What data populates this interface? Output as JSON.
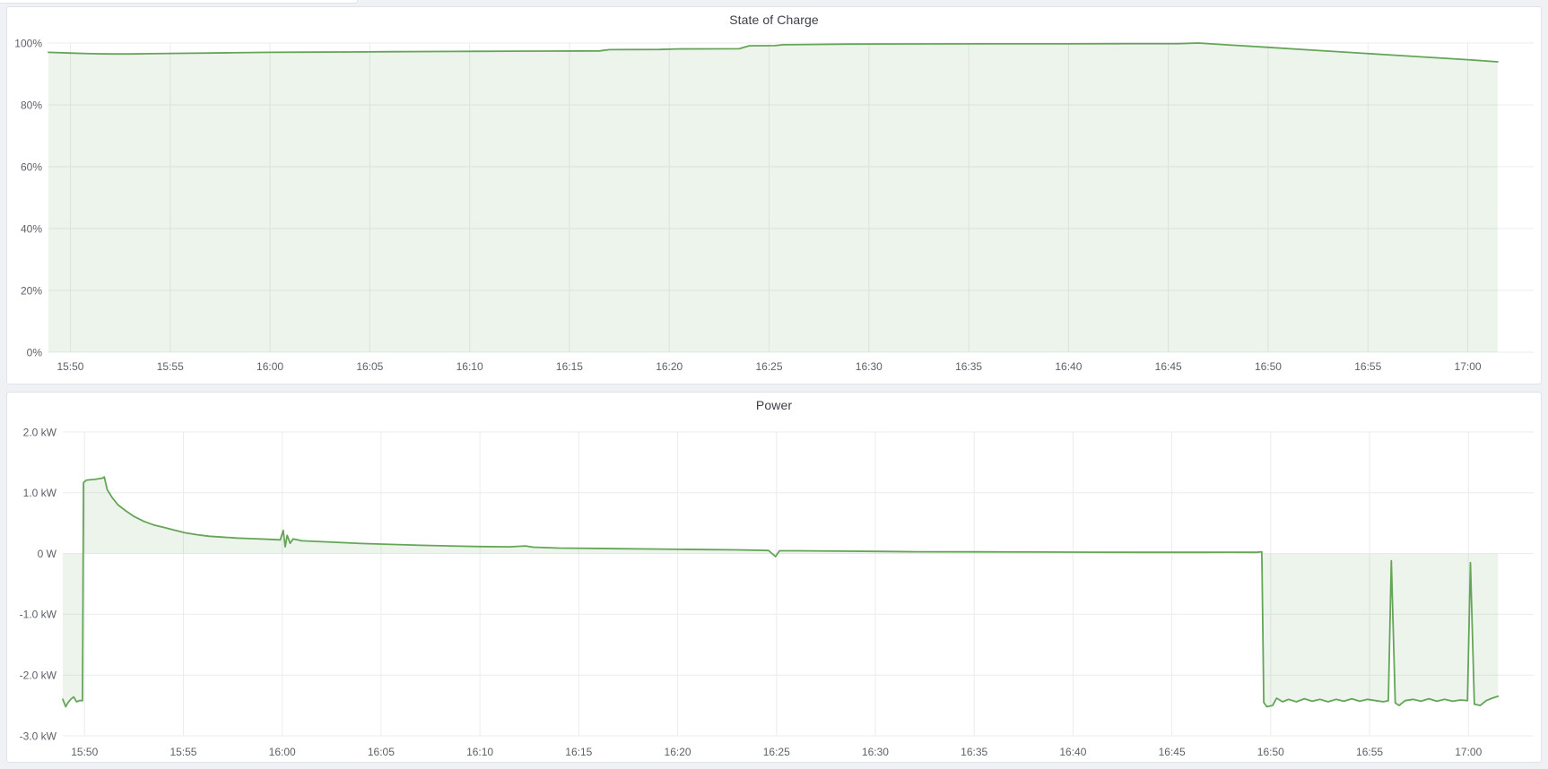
{
  "page": {
    "background": "#f0f1f4",
    "panel_background": "#ffffff",
    "panel_border": "#e0e3e9",
    "title_color": "#3c4048",
    "axis_label_color": "#5c6168",
    "grid_color": "#ebecee",
    "accent_green": "#65a558",
    "fill_opacity": 0.12
  },
  "chart_data": [
    {
      "type": "area",
      "title": "State of Charge",
      "unit": "percent",
      "legend": "hidden",
      "grid": true,
      "x_axis": {
        "start_minutes": 48.9,
        "end_minutes": 123.3,
        "tick_minutes": [
          50,
          55,
          60,
          65,
          70,
          75,
          80,
          85,
          90,
          95,
          100,
          105,
          110,
          115,
          120
        ],
        "tick_labels": [
          "15:50",
          "15:55",
          "16:00",
          "16:05",
          "16:10",
          "16:15",
          "16:20",
          "16:25",
          "16:30",
          "16:35",
          "16:40",
          "16:45",
          "16:50",
          "16:55",
          "17:00"
        ]
      },
      "y_axis": {
        "min": 0,
        "max": 100,
        "ticks": [
          {
            "value": 100,
            "label": "100%"
          },
          {
            "value": 80,
            "label": "80%"
          },
          {
            "value": 60,
            "label": "60%"
          },
          {
            "value": 40,
            "label": "40%"
          },
          {
            "value": 20,
            "label": "20%"
          }
        ],
        "bottom_tick": {
          "value": 0,
          "label": "0%"
        }
      },
      "fill_to_value": 0,
      "series": [
        {
          "name": "State of Charge",
          "points": [
            [
              48.9,
              97.0
            ],
            [
              50,
              96.75
            ],
            [
              51,
              96.55
            ],
            [
              52,
              96.45
            ],
            [
              53,
              96.45
            ],
            [
              54,
              96.55
            ],
            [
              56,
              96.7
            ],
            [
              58,
              96.85
            ],
            [
              60,
              97.0
            ],
            [
              62,
              97.05
            ],
            [
              64,
              97.1
            ],
            [
              66,
              97.2
            ],
            [
              68,
              97.25
            ],
            [
              70,
              97.3
            ],
            [
              72,
              97.35
            ],
            [
              74,
              97.4
            ],
            [
              76.5,
              97.45
            ],
            [
              77,
              97.85
            ],
            [
              79.5,
              97.9
            ],
            [
              80.4,
              98.1
            ],
            [
              83.5,
              98.15
            ],
            [
              84,
              99.1
            ],
            [
              85.3,
              99.15
            ],
            [
              85.7,
              99.45
            ],
            [
              87,
              99.55
            ],
            [
              89,
              99.65
            ],
            [
              92,
              99.7
            ],
            [
              96,
              99.75
            ],
            [
              100,
              99.75
            ],
            [
              103,
              99.8
            ],
            [
              105.5,
              99.8
            ],
            [
              106.5,
              100.0
            ],
            [
              108,
              99.4
            ],
            [
              110,
              98.6
            ],
            [
              112,
              97.8
            ],
            [
              114,
              97.0
            ],
            [
              116,
              96.2
            ],
            [
              118,
              95.4
            ],
            [
              120,
              94.6
            ],
            [
              121.5,
              93.9
            ]
          ]
        }
      ]
    },
    {
      "type": "area",
      "title": "Power",
      "unit": "watt",
      "legend": "hidden",
      "grid": true,
      "x_axis": {
        "start_minutes": 48.9,
        "end_minutes": 123.3,
        "tick_minutes": [
          50,
          55,
          60,
          65,
          70,
          75,
          80,
          85,
          90,
          95,
          100,
          105,
          110,
          115,
          120
        ],
        "tick_labels": [
          "15:50",
          "15:55",
          "16:00",
          "16:05",
          "16:10",
          "16:15",
          "16:20",
          "16:25",
          "16:30",
          "16:35",
          "16:40",
          "16:45",
          "16:50",
          "16:55",
          "17:00"
        ]
      },
      "y_axis": {
        "min": -3,
        "max": 2,
        "ticks": [
          {
            "value": 2,
            "label": "2.0 kW"
          },
          {
            "value": 1,
            "label": "1.0 kW"
          },
          {
            "value": 0,
            "label": "0 W"
          },
          {
            "value": -1,
            "label": "-1.0 kW"
          },
          {
            "value": -2,
            "label": "-2.0 kW"
          }
        ],
        "bottom_tick": {
          "value": -3,
          "label": "-3.0 kW"
        }
      },
      "fill_to_value": 0,
      "series": [
        {
          "name": "Power",
          "points": [
            [
              48.9,
              -2.4
            ],
            [
              49.05,
              -2.52
            ],
            [
              49.15,
              -2.46
            ],
            [
              49.3,
              -2.4
            ],
            [
              49.45,
              -2.36
            ],
            [
              49.6,
              -2.44
            ],
            [
              49.75,
              -2.42
            ],
            [
              49.9,
              -2.42
            ],
            [
              49.95,
              1.17
            ],
            [
              50.1,
              1.21
            ],
            [
              50.5,
              1.22
            ],
            [
              50.9,
              1.24
            ],
            [
              51.0,
              1.26
            ],
            [
              51.15,
              1.05
            ],
            [
              51.4,
              0.92
            ],
            [
              51.7,
              0.8
            ],
            [
              52.1,
              0.7
            ],
            [
              52.5,
              0.61
            ],
            [
              53.0,
              0.53
            ],
            [
              53.5,
              0.47
            ],
            [
              54.0,
              0.43
            ],
            [
              54.6,
              0.38
            ],
            [
              55.1,
              0.34
            ],
            [
              55.7,
              0.31
            ],
            [
              56.3,
              0.285
            ],
            [
              57.0,
              0.27
            ],
            [
              57.7,
              0.255
            ],
            [
              58.5,
              0.245
            ],
            [
              59.3,
              0.235
            ],
            [
              59.9,
              0.225
            ],
            [
              60.05,
              0.38
            ],
            [
              60.15,
              0.11
            ],
            [
              60.25,
              0.3
            ],
            [
              60.4,
              0.17
            ],
            [
              60.55,
              0.24
            ],
            [
              61.0,
              0.21
            ],
            [
              62.0,
              0.195
            ],
            [
              63.0,
              0.18
            ],
            [
              64.0,
              0.165
            ],
            [
              65.5,
              0.15
            ],
            [
              67.0,
              0.135
            ],
            [
              68.5,
              0.125
            ],
            [
              70.0,
              0.115
            ],
            [
              71.5,
              0.11
            ],
            [
              72.3,
              0.125
            ],
            [
              72.7,
              0.105
            ],
            [
              74.0,
              0.09
            ],
            [
              75.5,
              0.085
            ],
            [
              77.0,
              0.08
            ],
            [
              78.5,
              0.075
            ],
            [
              80.0,
              0.07
            ],
            [
              81.5,
              0.065
            ],
            [
              83.0,
              0.06
            ],
            [
              84.6,
              0.05
            ],
            [
              84.95,
              -0.05
            ],
            [
              85.15,
              0.045
            ],
            [
              86.0,
              0.045
            ],
            [
              88.0,
              0.04
            ],
            [
              90.0,
              0.035
            ],
            [
              92.0,
              0.03
            ],
            [
              95.0,
              0.028
            ],
            [
              98.0,
              0.025
            ],
            [
              101.0,
              0.022
            ],
            [
              104.0,
              0.02
            ],
            [
              106.5,
              0.02
            ],
            [
              108.0,
              0.022
            ],
            [
              109.3,
              0.02
            ],
            [
              109.55,
              0.03
            ],
            [
              109.65,
              -2.45
            ],
            [
              109.8,
              -2.52
            ],
            [
              110.1,
              -2.5
            ],
            [
              110.3,
              -2.38
            ],
            [
              110.6,
              -2.44
            ],
            [
              110.9,
              -2.4
            ],
            [
              111.3,
              -2.44
            ],
            [
              111.7,
              -2.39
            ],
            [
              112.1,
              -2.43
            ],
            [
              112.5,
              -2.4
            ],
            [
              112.9,
              -2.44
            ],
            [
              113.3,
              -2.4
            ],
            [
              113.7,
              -2.43
            ],
            [
              114.1,
              -2.39
            ],
            [
              114.5,
              -2.43
            ],
            [
              114.9,
              -2.4
            ],
            [
              115.3,
              -2.42
            ],
            [
              115.7,
              -2.44
            ],
            [
              115.95,
              -2.42
            ],
            [
              116.1,
              -0.12
            ],
            [
              116.3,
              -2.46
            ],
            [
              116.5,
              -2.5
            ],
            [
              116.8,
              -2.42
            ],
            [
              117.2,
              -2.4
            ],
            [
              117.6,
              -2.43
            ],
            [
              118.0,
              -2.39
            ],
            [
              118.4,
              -2.43
            ],
            [
              118.8,
              -2.4
            ],
            [
              119.2,
              -2.43
            ],
            [
              119.6,
              -2.41
            ],
            [
              119.95,
              -2.42
            ],
            [
              120.1,
              -0.15
            ],
            [
              120.3,
              -2.48
            ],
            [
              120.6,
              -2.5
            ],
            [
              120.9,
              -2.42
            ],
            [
              121.2,
              -2.38
            ],
            [
              121.5,
              -2.35
            ]
          ]
        }
      ]
    }
  ]
}
